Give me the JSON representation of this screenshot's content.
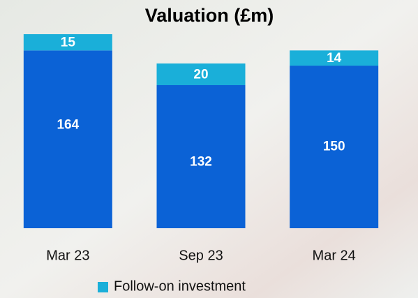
{
  "chart_data": {
    "type": "stacked_bar",
    "title": "Valuation (£m)",
    "categories": [
      "Mar 23",
      "Sep 23",
      "Mar 24"
    ],
    "series": [
      {
        "color": "#0b62d6",
        "values": [
          164,
          132,
          150
        ]
      },
      {
        "name": "Follow-on investment",
        "color": "#1aafd9",
        "values": [
          15,
          20,
          14
        ]
      }
    ]
  }
}
